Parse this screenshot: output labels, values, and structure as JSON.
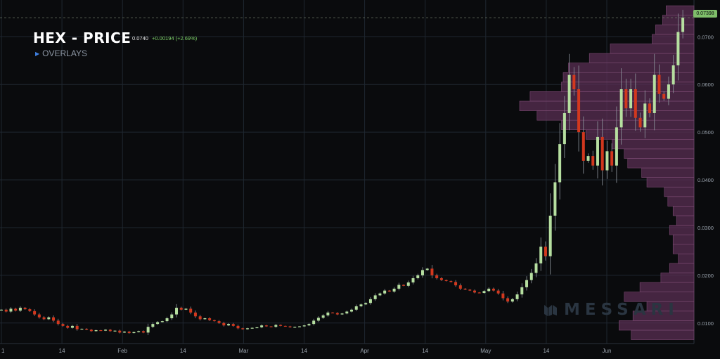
{
  "header": {
    "title": "HEX - PRICE",
    "last": "0.0740",
    "change": "+0.00194 (+2.69%)",
    "overlays_label": "OVERLAYS",
    "current_price_tag": "0.07398"
  },
  "watermark": {
    "text": "MESSARI"
  },
  "colors": {
    "up": "#b6dfa0",
    "down": "#d2381e",
    "profile": "#5a2f53",
    "grid": "#1f2730",
    "tag": "#7fbf6a"
  },
  "chart_data": {
    "type": "candlestick",
    "title": "HEX - PRICE",
    "x_tick_labels": [
      "1",
      "14",
      "Feb",
      "14",
      "Mar",
      "14",
      "Apr",
      "14",
      "May",
      "14",
      "Jun"
    ],
    "y_tick_labels": [
      "0.0100",
      "0.0200",
      "0.0300",
      "0.0400",
      "0.0500",
      "0.0600",
      "0.0700"
    ],
    "ylim": [
      0.0057,
      0.0777
    ],
    "current_price": 0.07398,
    "overlays": [
      "volume-profile"
    ],
    "grid": true,
    "candle_closes": [
      0.0128,
      0.0124,
      0.013,
      0.0126,
      0.0132,
      0.0129,
      0.0125,
      0.0118,
      0.0112,
      0.0108,
      0.0112,
      0.0105,
      0.0098,
      0.0094,
      0.009,
      0.0094,
      0.0087,
      0.0088,
      0.0086,
      0.0083,
      0.0085,
      0.0084,
      0.0086,
      0.0083,
      0.0084,
      0.008,
      0.0082,
      0.0079,
      0.0081,
      0.0083,
      0.008,
      0.0092,
      0.0098,
      0.0102,
      0.0104,
      0.011,
      0.0118,
      0.0132,
      0.0128,
      0.013,
      0.0122,
      0.0114,
      0.0108,
      0.011,
      0.0106,
      0.0104,
      0.01,
      0.0095,
      0.0098,
      0.0094,
      0.0089,
      0.0087,
      0.0089,
      0.009,
      0.0091,
      0.0095,
      0.0093,
      0.0092,
      0.0096,
      0.0094,
      0.0093,
      0.0091,
      0.0092,
      0.0093,
      0.0095,
      0.0098,
      0.0105,
      0.0111,
      0.0116,
      0.0122,
      0.0121,
      0.0118,
      0.012,
      0.0124,
      0.0128,
      0.0135,
      0.0139,
      0.0142,
      0.015,
      0.0158,
      0.0162,
      0.0168,
      0.0166,
      0.0172,
      0.018,
      0.0178,
      0.0185,
      0.0194,
      0.02,
      0.0211,
      0.0214,
      0.02,
      0.0194,
      0.019,
      0.0188,
      0.0186,
      0.0179,
      0.0172,
      0.017,
      0.0168,
      0.0164,
      0.0163,
      0.0167,
      0.0172,
      0.0168,
      0.0162,
      0.0152,
      0.0145,
      0.015,
      0.016,
      0.0175,
      0.019,
      0.0205,
      0.0225,
      0.026,
      0.024,
      0.0325,
      0.0395,
      0.0475,
      0.054,
      0.062,
      0.059,
      0.05,
      0.044,
      0.045,
      0.043,
      0.049,
      0.042,
      0.046,
      0.043,
      0.051,
      0.059,
      0.055,
      0.059,
      0.053,
      0.051,
      0.056,
      0.054,
      0.062,
      0.058,
      0.057,
      0.06,
      0.064,
      0.071,
      0.074
    ],
    "volume_profile": [
      {
        "price_low": 0.0065,
        "price_high": 0.0085,
        "relative_volume": 0.36
      },
      {
        "price_low": 0.0085,
        "price_high": 0.0105,
        "relative_volume": 0.43
      },
      {
        "price_low": 0.0105,
        "price_high": 0.0125,
        "relative_volume": 0.35
      },
      {
        "price_low": 0.0125,
        "price_high": 0.0145,
        "relative_volume": 0.27
      },
      {
        "price_low": 0.0145,
        "price_high": 0.0165,
        "relative_volume": 0.4
      },
      {
        "price_low": 0.0165,
        "price_high": 0.0185,
        "relative_volume": 0.31
      },
      {
        "price_low": 0.0185,
        "price_high": 0.0205,
        "relative_volume": 0.19
      },
      {
        "price_low": 0.0205,
        "price_high": 0.0225,
        "relative_volume": 0.14
      },
      {
        "price_low": 0.0225,
        "price_high": 0.0245,
        "relative_volume": 0.09
      },
      {
        "price_low": 0.0245,
        "price_high": 0.0265,
        "relative_volume": 0.12
      },
      {
        "price_low": 0.0265,
        "price_high": 0.0285,
        "relative_volume": 0.12
      },
      {
        "price_low": 0.0285,
        "price_high": 0.0305,
        "relative_volume": 0.14
      },
      {
        "price_low": 0.0305,
        "price_high": 0.0325,
        "relative_volume": 0.1
      },
      {
        "price_low": 0.0325,
        "price_high": 0.0345,
        "relative_volume": 0.12
      },
      {
        "price_low": 0.0345,
        "price_high": 0.0365,
        "relative_volume": 0.15
      },
      {
        "price_low": 0.0365,
        "price_high": 0.0385,
        "relative_volume": 0.17
      },
      {
        "price_low": 0.0385,
        "price_high": 0.0405,
        "relative_volume": 0.27
      },
      {
        "price_low": 0.0405,
        "price_high": 0.0425,
        "relative_volume": 0.3
      },
      {
        "price_low": 0.0425,
        "price_high": 0.0445,
        "relative_volume": 0.38
      },
      {
        "price_low": 0.0445,
        "price_high": 0.0465,
        "relative_volume": 0.4
      },
      {
        "price_low": 0.0465,
        "price_high": 0.0485,
        "relative_volume": 0.47
      },
      {
        "price_low": 0.0485,
        "price_high": 0.0505,
        "relative_volume": 0.62
      },
      {
        "price_low": 0.0505,
        "price_high": 0.0525,
        "relative_volume": 0.76
      },
      {
        "price_low": 0.0525,
        "price_high": 0.0545,
        "relative_volume": 0.9
      },
      {
        "price_low": 0.0545,
        "price_high": 0.0565,
        "relative_volume": 1.0
      },
      {
        "price_low": 0.0565,
        "price_high": 0.0585,
        "relative_volume": 0.94
      },
      {
        "price_low": 0.0585,
        "price_high": 0.0605,
        "relative_volume": 0.76
      },
      {
        "price_low": 0.0605,
        "price_high": 0.0625,
        "relative_volume": 0.75
      },
      {
        "price_low": 0.0625,
        "price_high": 0.0645,
        "relative_volume": 0.72
      },
      {
        "price_low": 0.0645,
        "price_high": 0.0665,
        "relative_volume": 0.6
      },
      {
        "price_low": 0.0665,
        "price_high": 0.0685,
        "relative_volume": 0.48
      },
      {
        "price_low": 0.0685,
        "price_high": 0.0705,
        "relative_volume": 0.24
      },
      {
        "price_low": 0.0705,
        "price_high": 0.0725,
        "relative_volume": 0.22
      },
      {
        "price_low": 0.0725,
        "price_high": 0.0745,
        "relative_volume": 0.18
      },
      {
        "price_low": 0.0745,
        "price_high": 0.0765,
        "relative_volume": 0.16
      }
    ]
  }
}
